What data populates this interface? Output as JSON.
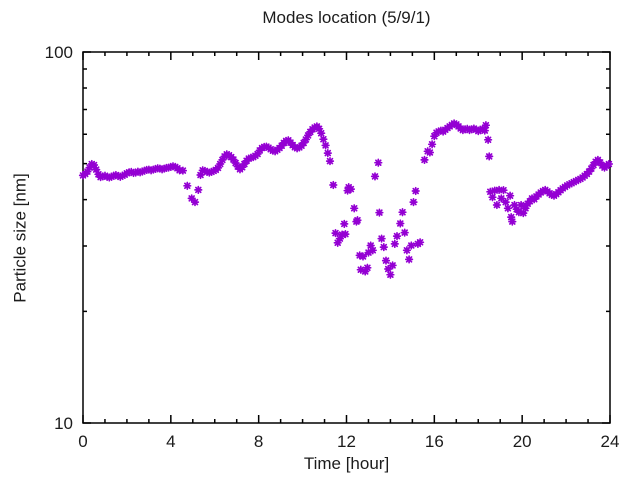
{
  "chart": {
    "title": "Modes location (5/9/1)",
    "xlabel": "Time [hour]",
    "ylabel": "Particle size [nm]"
  },
  "colors": {
    "background": "#ffffff",
    "axis": "#000000",
    "text": "#1c1c1c",
    "marker": "#9400D3"
  },
  "chart_data": {
    "type": "scatter",
    "title": "Modes location (5/9/1)",
    "xlabel": "Time [hour]",
    "ylabel": "Particle size [nm]",
    "xlim": [
      0,
      24
    ],
    "ylim": [
      10,
      100
    ],
    "yscale": "log",
    "xticks_major": [
      0,
      4,
      8,
      12,
      16,
      20,
      24
    ],
    "xticks_minor_step": 1,
    "yticks_major": [
      10,
      100
    ],
    "yticks_minor": [
      20,
      30,
      40,
      50,
      60,
      70,
      80,
      90
    ],
    "grid": false,
    "legend": false,
    "marker": "asterisk",
    "marker_color": "#9400D3",
    "series": [
      {
        "name": "mode location",
        "points": [
          [
            0.0,
            46.5
          ],
          [
            0.1,
            46.9
          ],
          [
            0.2,
            47.6
          ],
          [
            0.3,
            48.8
          ],
          [
            0.4,
            49.9
          ],
          [
            0.5,
            49.6
          ],
          [
            0.6,
            48.2
          ],
          [
            0.7,
            46.8
          ],
          [
            0.8,
            46.0
          ],
          [
            0.9,
            46.2
          ],
          [
            1.0,
            46.4
          ],
          [
            1.1,
            46.1
          ],
          [
            1.2,
            45.9
          ],
          [
            1.3,
            46.1
          ],
          [
            1.4,
            46.4
          ],
          [
            1.5,
            46.6
          ],
          [
            1.6,
            46.3
          ],
          [
            1.7,
            46.1
          ],
          [
            1.8,
            46.4
          ],
          [
            1.9,
            46.7
          ],
          [
            2.0,
            47.1
          ],
          [
            2.1,
            47.4
          ],
          [
            2.2,
            47.5
          ],
          [
            2.3,
            47.2
          ],
          [
            2.4,
            47.3
          ],
          [
            2.5,
            47.6
          ],
          [
            2.6,
            47.4
          ],
          [
            2.7,
            47.6
          ],
          [
            2.8,
            47.9
          ],
          [
            2.9,
            48.1
          ],
          [
            3.0,
            48.2
          ],
          [
            3.1,
            48.0
          ],
          [
            3.2,
            48.2
          ],
          [
            3.3,
            48.4
          ],
          [
            3.4,
            48.6
          ],
          [
            3.5,
            48.5
          ],
          [
            3.6,
            48.3
          ],
          [
            3.7,
            48.5
          ],
          [
            3.8,
            48.7
          ],
          [
            3.9,
            48.8
          ],
          [
            4.0,
            49.0
          ],
          [
            4.1,
            49.2
          ],
          [
            4.2,
            49.0
          ],
          [
            4.3,
            48.6
          ],
          [
            4.4,
            48.0
          ],
          [
            4.55,
            47.9
          ],
          [
            4.75,
            43.6
          ],
          [
            4.95,
            40.3
          ],
          [
            5.1,
            39.4
          ],
          [
            5.25,
            42.5
          ],
          [
            5.35,
            46.6
          ],
          [
            5.45,
            48.0
          ],
          [
            5.55,
            47.8
          ],
          [
            5.65,
            47.5
          ],
          [
            5.75,
            47.3
          ],
          [
            5.85,
            47.5
          ],
          [
            5.95,
            47.8
          ],
          [
            6.05,
            48.1
          ],
          [
            6.15,
            48.7
          ],
          [
            6.25,
            49.9
          ],
          [
            6.35,
            51.2
          ],
          [
            6.45,
            52.3
          ],
          [
            6.55,
            53.0
          ],
          [
            6.65,
            52.7
          ],
          [
            6.75,
            52.1
          ],
          [
            6.85,
            51.3
          ],
          [
            6.95,
            50.2
          ],
          [
            7.05,
            49.1
          ],
          [
            7.15,
            48.3
          ],
          [
            7.25,
            48.9
          ],
          [
            7.35,
            49.9
          ],
          [
            7.45,
            50.9
          ],
          [
            7.55,
            51.6
          ],
          [
            7.65,
            51.9
          ],
          [
            7.75,
            52.1
          ],
          [
            7.85,
            52.5
          ],
          [
            7.95,
            53.1
          ],
          [
            8.05,
            54.3
          ],
          [
            8.15,
            55.1
          ],
          [
            8.25,
            55.5
          ],
          [
            8.35,
            55.6
          ],
          [
            8.45,
            55.2
          ],
          [
            8.55,
            54.7
          ],
          [
            8.65,
            54.2
          ],
          [
            8.75,
            54.0
          ],
          [
            8.85,
            54.5
          ],
          [
            8.95,
            55.1
          ],
          [
            9.05,
            55.9
          ],
          [
            9.15,
            56.9
          ],
          [
            9.25,
            57.6
          ],
          [
            9.35,
            57.8
          ],
          [
            9.45,
            57.0
          ],
          [
            9.55,
            56.1
          ],
          [
            9.65,
            55.4
          ],
          [
            9.75,
            55.0
          ],
          [
            9.85,
            55.3
          ],
          [
            9.95,
            55.9
          ],
          [
            10.05,
            56.9
          ],
          [
            10.15,
            58.1
          ],
          [
            10.25,
            59.6
          ],
          [
            10.35,
            60.9
          ],
          [
            10.45,
            61.9
          ],
          [
            10.55,
            62.6
          ],
          [
            10.65,
            63.0
          ],
          [
            10.75,
            62.1
          ],
          [
            10.85,
            60.4
          ],
          [
            10.95,
            58.2
          ],
          [
            11.05,
            56.0
          ],
          [
            11.15,
            53.4
          ],
          [
            11.25,
            50.8
          ],
          [
            11.4,
            43.8
          ],
          [
            11.5,
            32.5
          ],
          [
            11.6,
            30.6
          ],
          [
            11.7,
            31.4
          ],
          [
            11.8,
            32.2
          ],
          [
            11.9,
            34.4
          ],
          [
            11.95,
            32.3
          ],
          [
            12.05,
            42.3
          ],
          [
            12.1,
            43.2
          ],
          [
            12.2,
            42.7
          ],
          [
            12.35,
            37.9
          ],
          [
            12.45,
            34.9
          ],
          [
            12.5,
            35.2
          ],
          [
            12.6,
            28.3
          ],
          [
            12.65,
            25.9
          ],
          [
            12.75,
            28.1
          ],
          [
            12.85,
            25.6
          ],
          [
            12.95,
            26.2
          ],
          [
            13.0,
            28.8
          ],
          [
            13.1,
            30.1
          ],
          [
            13.2,
            29.2
          ],
          [
            13.3,
            46.2
          ],
          [
            13.45,
            50.3
          ],
          [
            13.5,
            36.9
          ],
          [
            13.6,
            31.4
          ],
          [
            13.7,
            29.8
          ],
          [
            13.8,
            27.4
          ],
          [
            13.9,
            26.0
          ],
          [
            14.0,
            25.1
          ],
          [
            14.1,
            26.6
          ],
          [
            14.2,
            30.4
          ],
          [
            14.3,
            31.9
          ],
          [
            14.45,
            34.5
          ],
          [
            14.55,
            37.0
          ],
          [
            14.65,
            32.6
          ],
          [
            14.75,
            29.2
          ],
          [
            14.85,
            27.6
          ],
          [
            14.95,
            30.1
          ],
          [
            15.05,
            39.4
          ],
          [
            15.15,
            42.2
          ],
          [
            15.25,
            30.4
          ],
          [
            15.35,
            30.7
          ],
          [
            15.55,
            51.2
          ],
          [
            15.7,
            54.0
          ],
          [
            15.8,
            53.6
          ],
          [
            15.9,
            56.4
          ],
          [
            16.0,
            59.3
          ],
          [
            16.1,
            60.6
          ],
          [
            16.2,
            61.1
          ],
          [
            16.3,
            61.4
          ],
          [
            16.4,
            61.0
          ],
          [
            16.5,
            61.7
          ],
          [
            16.6,
            62.4
          ],
          [
            16.7,
            63.0
          ],
          [
            16.8,
            63.6
          ],
          [
            16.9,
            64.2
          ],
          [
            17.0,
            63.8
          ],
          [
            17.1,
            63.0
          ],
          [
            17.2,
            62.2
          ],
          [
            17.3,
            61.6
          ],
          [
            17.4,
            61.9
          ],
          [
            17.5,
            62.1
          ],
          [
            17.6,
            61.6
          ],
          [
            17.7,
            61.9
          ],
          [
            17.8,
            62.2
          ],
          [
            17.9,
            61.7
          ],
          [
            18.0,
            61.2
          ],
          [
            18.1,
            61.7
          ],
          [
            18.2,
            62.1
          ],
          [
            18.3,
            61.4
          ],
          [
            18.35,
            63.5
          ],
          [
            18.45,
            58.0
          ],
          [
            18.5,
            52.3
          ],
          [
            18.55,
            42.0
          ],
          [
            18.65,
            40.6
          ],
          [
            18.75,
            42.3
          ],
          [
            18.85,
            38.7
          ],
          [
            18.95,
            42.5
          ],
          [
            19.05,
            40.3
          ],
          [
            19.15,
            42.4
          ],
          [
            19.25,
            39.4
          ],
          [
            19.35,
            37.9
          ],
          [
            19.45,
            41.0
          ],
          [
            19.5,
            35.9
          ],
          [
            19.55,
            34.9
          ],
          [
            19.65,
            38.7
          ],
          [
            19.75,
            37.7
          ],
          [
            19.85,
            37.0
          ],
          [
            19.95,
            38.7
          ],
          [
            20.05,
            36.8
          ],
          [
            20.15,
            37.9
          ],
          [
            20.25,
            39.0
          ],
          [
            20.35,
            39.6
          ],
          [
            20.45,
            40.3
          ],
          [
            20.55,
            40.1
          ],
          [
            20.65,
            40.8
          ],
          [
            20.75,
            41.3
          ],
          [
            20.85,
            41.8
          ],
          [
            20.95,
            42.2
          ],
          [
            21.05,
            42.5
          ],
          [
            21.15,
            42.1
          ],
          [
            21.25,
            41.6
          ],
          [
            21.35,
            41.2
          ],
          [
            21.45,
            41.0
          ],
          [
            21.55,
            41.4
          ],
          [
            21.65,
            41.9
          ],
          [
            21.75,
            42.4
          ],
          [
            21.85,
            42.9
          ],
          [
            21.95,
            43.3
          ],
          [
            22.05,
            43.7
          ],
          [
            22.15,
            44.0
          ],
          [
            22.25,
            44.3
          ],
          [
            22.35,
            44.6
          ],
          [
            22.45,
            44.9
          ],
          [
            22.55,
            45.2
          ],
          [
            22.65,
            45.5
          ],
          [
            22.75,
            45.9
          ],
          [
            22.85,
            46.4
          ],
          [
            22.95,
            46.9
          ],
          [
            23.05,
            47.6
          ],
          [
            23.15,
            48.5
          ],
          [
            23.25,
            49.6
          ],
          [
            23.35,
            50.6
          ],
          [
            23.45,
            51.2
          ],
          [
            23.55,
            50.4
          ],
          [
            23.65,
            49.4
          ],
          [
            23.75,
            48.8
          ],
          [
            23.85,
            49.3
          ],
          [
            23.95,
            49.9
          ]
        ]
      }
    ]
  }
}
